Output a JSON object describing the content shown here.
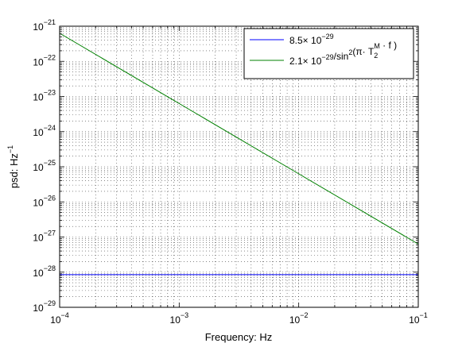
{
  "chart_data": {
    "type": "line",
    "xscale": "log",
    "yscale": "log",
    "xlim": [
      0.0001,
      0.1
    ],
    "ylim": [
      1e-29,
      1e-21
    ],
    "xlabel": "Frequency: Hz",
    "ylabel": "psd: Hz",
    "ylabel_exponent": "−1",
    "xticks": [
      {
        "value": 0.0001,
        "base": "10",
        "exp": "−4"
      },
      {
        "value": 0.001,
        "base": "10",
        "exp": "−3"
      },
      {
        "value": 0.01,
        "base": "10",
        "exp": "−2"
      },
      {
        "value": 0.1,
        "base": "10",
        "exp": "−1"
      }
    ],
    "yticks": [
      {
        "value": 1e-29,
        "base": "10",
        "exp": "−29"
      },
      {
        "value": 1e-28,
        "base": "10",
        "exp": "−28"
      },
      {
        "value": 1e-27,
        "base": "10",
        "exp": "−27"
      },
      {
        "value": 1e-26,
        "base": "10",
        "exp": "−26"
      },
      {
        "value": 1e-25,
        "base": "10",
        "exp": "−25"
      },
      {
        "value": 1e-24,
        "base": "10",
        "exp": "−24"
      },
      {
        "value": 1e-23,
        "base": "10",
        "exp": "−23"
      },
      {
        "value": 1e-22,
        "base": "10",
        "exp": "−22"
      },
      {
        "value": 1e-21,
        "base": "10",
        "exp": "−21"
      }
    ],
    "grid": true,
    "legend_position": "top-right",
    "series": [
      {
        "name": "8.5× 10−29",
        "legend": [
          {
            "t": "8.5× 10"
          },
          {
            "t": "−29",
            "sup": true
          }
        ],
        "color": "#0000ff",
        "x": [
          0.0001,
          0.1
        ],
        "y": [
          8.5e-29,
          8.5e-29
        ]
      },
      {
        "name": "2.1× 10−29/sin2(π· T2M · f )",
        "legend": [
          {
            "t": "2.1× 10"
          },
          {
            "t": "−29",
            "sup": true
          },
          {
            "t": "/sin"
          },
          {
            "t": "2",
            "sup": true
          },
          {
            "t": "(π· T"
          },
          {
            "t": "2",
            "sub": true,
            "sup2": "M"
          },
          {
            "t": " · f )"
          }
        ],
        "color": "#008000",
        "x": [
          0.0001,
          0.001,
          0.01,
          0.1
        ],
        "y": [
          6.3e-22,
          6.3e-24,
          6.3e-26,
          6.3e-28
        ]
      }
    ]
  }
}
